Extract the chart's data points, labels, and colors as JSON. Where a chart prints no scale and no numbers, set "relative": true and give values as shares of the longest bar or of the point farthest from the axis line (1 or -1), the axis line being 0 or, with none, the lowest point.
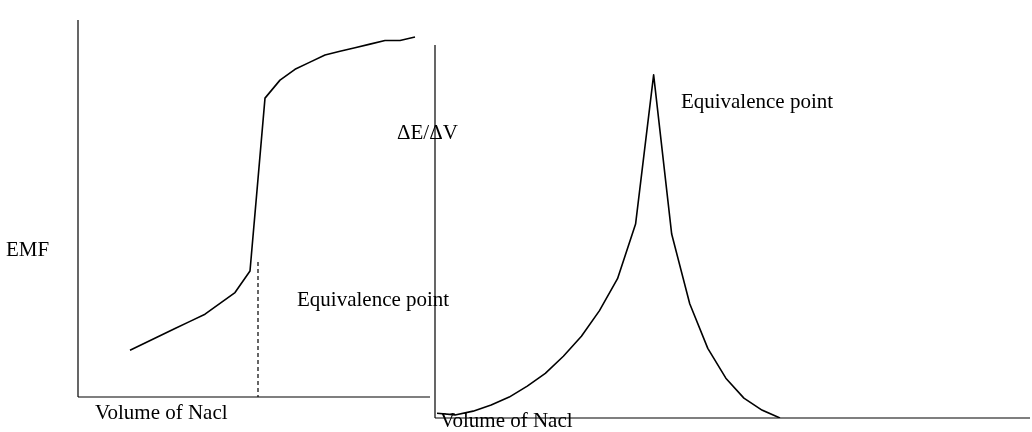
{
  "chart_data": [
    {
      "type": "line",
      "relative": true,
      "ylabel": "EMF",
      "xlabel": "Volume of Nacl",
      "color": "#000000",
      "line_style": "solid",
      "categories": [
        null,
        null,
        null,
        null,
        null,
        null,
        null,
        null,
        null,
        null,
        null,
        null,
        null,
        null,
        null,
        null,
        null,
        null,
        null,
        null
      ],
      "values": [
        0.13,
        0.15,
        0.17,
        0.19,
        0.21,
        0.23,
        0.26,
        0.29,
        0.35,
        0.83,
        0.88,
        0.91,
        0.93,
        0.95,
        0.96,
        0.97,
        0.98,
        0.99,
        0.99,
        1
      ],
      "annotations": [
        "Equivalence point"
      ]
    },
    {
      "type": "line",
      "relative": true,
      "ylabel": "ΔE/ΔV",
      "xlabel": "Volume of Nacl",
      "color": "#000000",
      "line_style": "solid",
      "categories": [
        null,
        null,
        null,
        null,
        null,
        null,
        null,
        null,
        null,
        null,
        null,
        null,
        null,
        null,
        null,
        null,
        null,
        null,
        null,
        null
      ],
      "values": [
        0.014,
        0.009,
        0.02,
        0.038,
        0.061,
        0.093,
        0.13,
        0.18,
        0.238,
        0.313,
        0.406,
        0.565,
        1,
        0.536,
        0.333,
        0.203,
        0.116,
        0.058,
        0.023,
        0
      ],
      "annotations": [
        "Equivalence point"
      ]
    }
  ]
}
